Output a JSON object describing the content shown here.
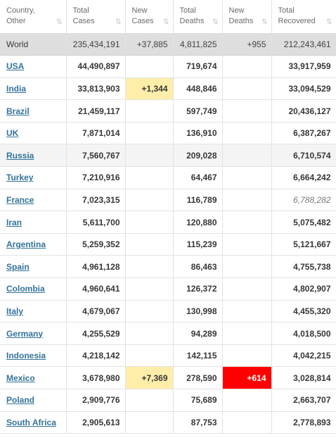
{
  "headers": [
    {
      "line1": "Country,",
      "line2": "Other"
    },
    {
      "line1": "Total",
      "line2": "Cases"
    },
    {
      "line1": "New",
      "line2": "Cases"
    },
    {
      "line1": "Total",
      "line2": "Deaths"
    },
    {
      "line1": "New",
      "line2": "Deaths"
    },
    {
      "line1": "Total",
      "line2": "Recovered"
    }
  ],
  "sort_icons": [
    "⇅",
    "⇅",
    "⇅",
    "⇅",
    "⇅",
    "⇅"
  ],
  "world": {
    "country": "World",
    "total_cases": "235,434,191",
    "new_cases": "+37,885",
    "total_deaths": "4,811,825",
    "new_deaths": "+955",
    "total_recovered": "212,243,461"
  },
  "rows": [
    {
      "country": "USA",
      "total_cases": "44,490,897",
      "new_cases": "",
      "total_deaths": "719,674",
      "new_deaths": "",
      "total_recovered": "33,917,959"
    },
    {
      "country": "India",
      "total_cases": "33,813,903",
      "new_cases": "+1,344",
      "total_deaths": "448,846",
      "new_deaths": "",
      "total_recovered": "33,094,529"
    },
    {
      "country": "Brazil",
      "total_cases": "21,459,117",
      "new_cases": "",
      "total_deaths": "597,749",
      "new_deaths": "",
      "total_recovered": "20,436,127"
    },
    {
      "country": "UK",
      "total_cases": "7,871,014",
      "new_cases": "",
      "total_deaths": "136,910",
      "new_deaths": "",
      "total_recovered": "6,387,267"
    },
    {
      "country": "Russia",
      "total_cases": "7,560,767",
      "new_cases": "",
      "total_deaths": "209,028",
      "new_deaths": "",
      "total_recovered": "6,710,574"
    },
    {
      "country": "Turkey",
      "total_cases": "7,210,916",
      "new_cases": "",
      "total_deaths": "64,467",
      "new_deaths": "",
      "total_recovered": "6,664,242"
    },
    {
      "country": "France",
      "total_cases": "7,023,315",
      "new_cases": "",
      "total_deaths": "116,789",
      "new_deaths": "",
      "total_recovered": "6,788,282"
    },
    {
      "country": "Iran",
      "total_cases": "5,611,700",
      "new_cases": "",
      "total_deaths": "120,880",
      "new_deaths": "",
      "total_recovered": "5,075,482"
    },
    {
      "country": "Argentina",
      "total_cases": "5,259,352",
      "new_cases": "",
      "total_deaths": "115,239",
      "new_deaths": "",
      "total_recovered": "5,121,667"
    },
    {
      "country": "Spain",
      "total_cases": "4,961,128",
      "new_cases": "",
      "total_deaths": "86,463",
      "new_deaths": "",
      "total_recovered": "4,755,738"
    },
    {
      "country": "Colombia",
      "total_cases": "4,960,641",
      "new_cases": "",
      "total_deaths": "126,372",
      "new_deaths": "",
      "total_recovered": "4,802,907"
    },
    {
      "country": "Italy",
      "total_cases": "4,679,067",
      "new_cases": "",
      "total_deaths": "130,998",
      "new_deaths": "",
      "total_recovered": "4,455,320"
    },
    {
      "country": "Germany",
      "total_cases": "4,255,529",
      "new_cases": "",
      "total_deaths": "94,289",
      "new_deaths": "",
      "total_recovered": "4,018,500"
    },
    {
      "country": "Indonesia",
      "total_cases": "4,218,142",
      "new_cases": "",
      "total_deaths": "142,115",
      "new_deaths": "",
      "total_recovered": "4,042,215"
    },
    {
      "country": "Mexico",
      "total_cases": "3,678,980",
      "new_cases": "+7,369",
      "total_deaths": "278,590",
      "new_deaths": "+614",
      "total_recovered": "3,028,814"
    },
    {
      "country": "Poland",
      "total_cases": "2,909,776",
      "new_cases": "",
      "total_deaths": "75,689",
      "new_deaths": "",
      "total_recovered": "2,663,707"
    },
    {
      "country": "South Africa",
      "total_cases": "2,905,613",
      "new_cases": "",
      "total_deaths": "87,753",
      "new_deaths": "",
      "total_recovered": "2,778,893"
    }
  ],
  "colors": {
    "new_cases_highlight": "#ffeeaa",
    "new_deaths_highlight": "#ff0000",
    "link": "#33739a",
    "world_row": "#dedede"
  }
}
